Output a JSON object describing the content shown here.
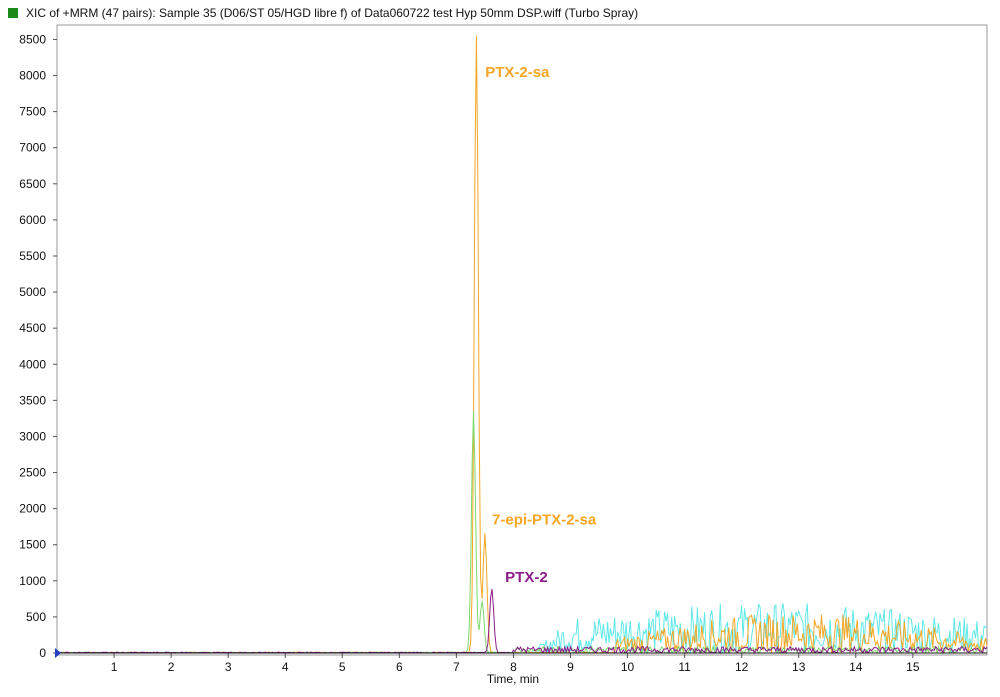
{
  "header": {
    "title": "XIC of +MRM (47 pairs):  Sample 35 (D06/ST 05/HGD libre f) of Data060722 test Hyp  50mm DSP.wiff (Turbo Spray)",
    "marker_color": "#1a8a1a"
  },
  "chart_data": {
    "type": "line",
    "title": "XIC of +MRM (47 pairs):  Sample 35 (D06/ST 05/HGD libre f) of Data060722 test Hyp  50mm DSP.wiff (Turbo Spray)",
    "xlabel": "Time, min",
    "ylabel": "",
    "xlim": [
      0,
      16.3
    ],
    "ylim": [
      0,
      8700
    ],
    "xticks": [
      1,
      2,
      3,
      4,
      5,
      6,
      7,
      8,
      9,
      10,
      11,
      12,
      13,
      14,
      15
    ],
    "yticks": [
      0,
      500,
      1000,
      1500,
      2000,
      2500,
      3000,
      3500,
      4000,
      4500,
      5000,
      5500,
      6000,
      6500,
      7000,
      7500,
      8000,
      8500
    ],
    "grid": false,
    "series": [
      {
        "color": "#f5a623",
        "peaks": [
          [
            7.35,
            8550
          ],
          [
            7.5,
            1650
          ]
        ]
      },
      {
        "color": "#7fd86a",
        "peaks": [
          [
            7.3,
            3350
          ],
          [
            7.45,
            720
          ]
        ]
      },
      {
        "color": "#8b1a8b",
        "peaks": [
          [
            7.62,
            890
          ]
        ]
      },
      {
        "color": "#5fe8e8",
        "peaks": []
      }
    ],
    "annotations": [
      {
        "text": "PTX-2-sa",
        "x": 7.4,
        "y": 8050,
        "color": "#f5a623"
      },
      {
        "text": "7-epi-PTX-2-sa",
        "x": 7.52,
        "y": 1850,
        "color": "#f5a623"
      },
      {
        "text": "PTX-2",
        "x": 7.75,
        "y": 1050,
        "color": "#8b1a8b"
      }
    ]
  }
}
